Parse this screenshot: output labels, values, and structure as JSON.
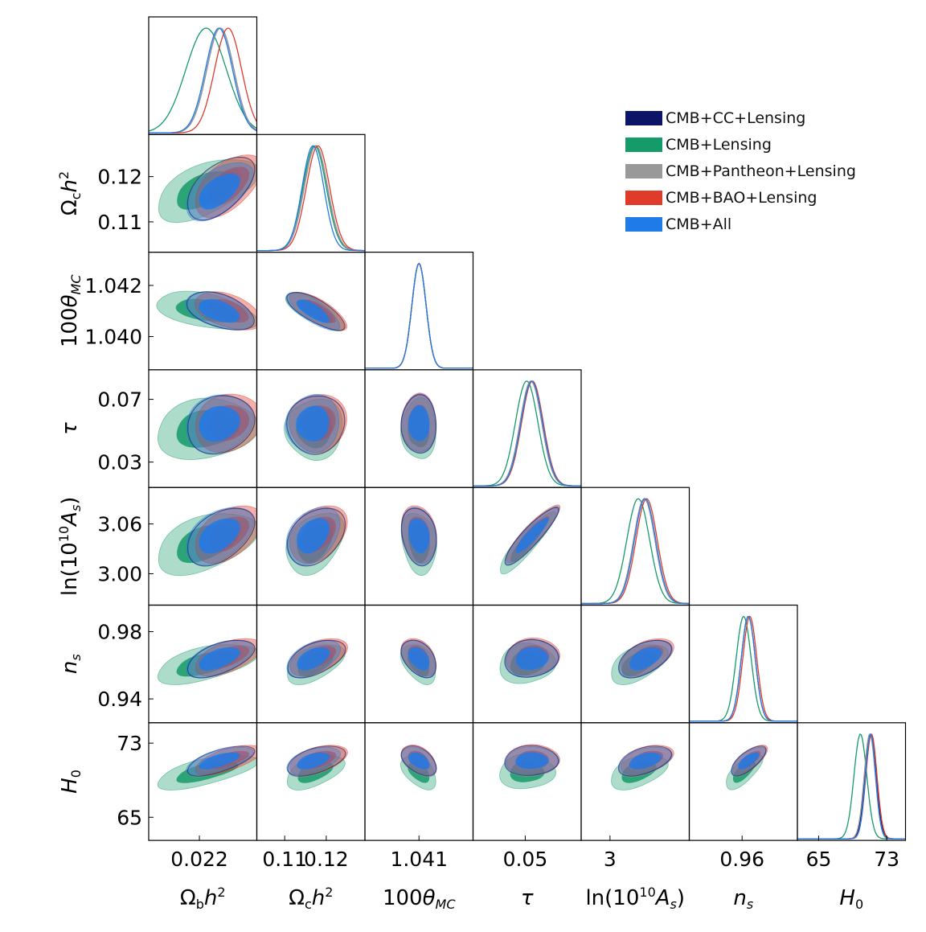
{
  "chart_data": {
    "type": "corner",
    "parameters": [
      {
        "name": "Ω_b h^2",
        "label_html": "Ω<tspan font-size='16' dy='5'>b</tspan><tspan dy='-5' font-style='italic'>h</tspan><tspan font-size='16' dy='-10'>2</tspan>",
        "range": [
          0.0205,
          0.0237
        ],
        "ticks": [
          0.022
        ],
        "tick_labels": [
          "0.022"
        ],
        "means": [
          0.02262,
          0.0222,
          0.02262,
          0.02285,
          0.02258
        ],
        "sigma": [
          0.0004,
          0.0006,
          0.0004,
          0.0004,
          0.0004
        ]
      },
      {
        "name": "Ω_c h^2",
        "label_html": "Ω<tspan font-size='16' dy='5'>c</tspan><tspan dy='-5' font-style='italic'>h</tspan><tspan font-size='16' dy='-10'>2</tspan>",
        "range": [
          0.1033,
          0.1293
        ],
        "ticks": [
          0.11,
          0.12
        ],
        "tick_labels": [
          "0.11",
          "0.12"
        ],
        "means": [
          0.1175,
          0.1172,
          0.1175,
          0.118,
          0.1168
        ],
        "sigma": [
          0.0028,
          0.0028,
          0.0028,
          0.0028,
          0.0026
        ]
      },
      {
        "name": "100θ_MC",
        "label_html": "100<tspan font-style='italic'>θ</tspan><tspan font-size='16' dy='5' font-style='italic'>MC</tspan>",
        "range": [
          1.0387,
          1.0433
        ],
        "ticks": [
          1.04,
          1.042
        ],
        "tick_labels": [
          "1.040",
          "1.042"
        ],
        "x_tick": [
          1.041
        ],
        "x_tick_labels": [
          "1.041"
        ],
        "means": [
          1.041,
          1.041,
          1.041,
          1.041,
          1.041
        ],
        "sigma": [
          0.0003,
          0.0003,
          0.0003,
          0.0003,
          0.0003
        ]
      },
      {
        "name": "τ",
        "label_html": "<tspan font-style='italic'>τ</tspan>",
        "range": [
          0.0138,
          0.0888
        ],
        "ticks": [
          0.03,
          0.07
        ],
        "tick_labels": [
          "0.03",
          "0.07"
        ],
        "x_tick": [
          0.05
        ],
        "x_tick_labels": [
          "0.05"
        ],
        "means": [
          0.054,
          0.051,
          0.054,
          0.055,
          0.0545
        ],
        "sigma": [
          0.0075,
          0.0078,
          0.0075,
          0.0075,
          0.0075
        ]
      },
      {
        "name": "ln(10^10 A_s)",
        "label_html": "ln(10<tspan font-size='16' dy='-10'>10</tspan><tspan dy='10' font-style='italic'>A</tspan><tspan font-size='16' dy='5' font-style='italic'>s</tspan><tspan dy='-5'>)</tspan>",
        "range": [
          2.9622,
          3.1039
        ],
        "ticks": [
          3.0,
          3.06
        ],
        "tick_labels": [
          "3.00",
          "3.06"
        ],
        "x_tick": [
          3.0
        ],
        "x_tick_labels": [
          "3"
        ],
        "means": [
          3.045,
          3.037,
          3.045,
          3.048,
          3.046
        ],
        "sigma": [
          0.014,
          0.015,
          0.014,
          0.014,
          0.014
        ]
      },
      {
        "name": "n_s",
        "label_html": "<tspan font-style='italic'>n</tspan><tspan font-size='16' dy='5' font-style='italic'>s</tspan>",
        "range": [
          0.9258,
          0.9958
        ],
        "ticks": [
          0.94,
          0.98
        ],
        "tick_labels": [
          "0.94",
          "0.98"
        ],
        "x_tick": [
          0.96
        ],
        "x_tick_labels": [
          "0.96"
        ],
        "means": [
          0.964,
          0.961,
          0.964,
          0.965,
          0.964
        ],
        "sigma": [
          0.0045,
          0.0048,
          0.0045,
          0.0045,
          0.0045
        ]
      },
      {
        "name": "H_0",
        "label_html": "<tspan font-style='italic'>H</tspan><tspan font-size='16' dy='5'>0</tspan>",
        "range": [
          62.5,
          75.2
        ],
        "ticks": [
          65,
          73
        ],
        "tick_labels": [
          "65",
          "73"
        ],
        "means": [
          71.1,
          69.9,
          71.0,
          71.2,
          71.1
        ],
        "sigma": [
          0.65,
          0.75,
          0.65,
          0.65,
          0.6
        ]
      }
    ],
    "series": [
      {
        "name": "CMB+CC+Lensing",
        "color": "#0b1466",
        "filled": false
      },
      {
        "name": "CMB+Lensing",
        "color": "#159a6a",
        "filled": true
      },
      {
        "name": "CMB+Pantheon+Lensing",
        "color": "#999999",
        "filled": true
      },
      {
        "name": "CMB+BAO+Lensing",
        "color": "#e03a2a",
        "filled": true
      },
      {
        "name": "CMB+All",
        "color": "#1f7be8",
        "filled": true
      }
    ],
    "legend_position": "top-right",
    "correlations": {
      "1-0": 0.55,
      "2-0": -0.45,
      "3-0": 0.15,
      "4-0": 0.45,
      "5-0": 0.55,
      "6-0": 0.65,
      "2-1": -0.75,
      "3-1": 0.05,
      "4-1": 0.35,
      "5-1": 0.5,
      "6-1": 0.5,
      "3-2": 0.0,
      "4-2": -0.2,
      "5-2": -0.4,
      "6-2": -0.45,
      "4-3": 0.9,
      "5-3": 0.1,
      "6-3": 0.05,
      "5-4": 0.5,
      "6-4": 0.45,
      "6-5": 0.7
    }
  }
}
